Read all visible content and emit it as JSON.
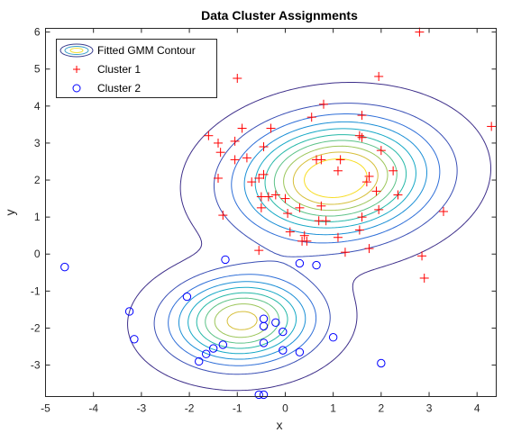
{
  "chart_data": {
    "type": "scatter",
    "title": "Data Cluster Assignments",
    "xlabel": "x",
    "ylabel": "y",
    "xlim": [
      -5,
      4.4
    ],
    "ylim": [
      -3.85,
      6.1
    ],
    "xticks": [
      "-5",
      "-4",
      "-3",
      "-2",
      "-1",
      "0",
      "1",
      "2",
      "3",
      "4"
    ],
    "yticks": [
      "-3",
      "-2",
      "-1",
      "0",
      "1",
      "2",
      "3",
      "4",
      "5",
      "6"
    ],
    "grid": false,
    "legend_position": "top-left",
    "legend": [
      "Fitted GMM Contour",
      "Cluster 1",
      "Cluster 2"
    ],
    "contour": {
      "label": "Fitted GMM Contour",
      "components": [
        {
          "mean": [
            1.05,
            2.05
          ],
          "sx": 1.25,
          "sy": 1.0,
          "rho": 0.1,
          "weight": 0.68
        },
        {
          "mean": [
            -0.9,
            -1.8
          ],
          "sx": 0.95,
          "sy": 0.75,
          "rho": 0.05,
          "weight": 0.32
        }
      ],
      "levels": 10
    },
    "series": [
      {
        "name": "Cluster 1",
        "marker": "plus",
        "color": "#ff0000",
        "points": [
          [
            2.8,
            6.0
          ],
          [
            -1.0,
            4.75
          ],
          [
            1.95,
            4.8
          ],
          [
            0.8,
            4.05
          ],
          [
            0.55,
            3.7
          ],
          [
            1.6,
            3.75
          ],
          [
            4.3,
            3.45
          ],
          [
            -1.6,
            3.2
          ],
          [
            -0.9,
            3.4
          ],
          [
            -0.3,
            3.4
          ],
          [
            1.55,
            3.2
          ],
          [
            1.6,
            3.15
          ],
          [
            -1.4,
            3.0
          ],
          [
            -1.05,
            3.05
          ],
          [
            -0.45,
            2.9
          ],
          [
            -1.35,
            2.75
          ],
          [
            -0.8,
            2.6
          ],
          [
            2.0,
            2.8
          ],
          [
            0.65,
            2.55
          ],
          [
            0.75,
            2.55
          ],
          [
            -1.05,
            2.55
          ],
          [
            1.15,
            2.55
          ],
          [
            1.1,
            2.25
          ],
          [
            2.25,
            2.25
          ],
          [
            -0.55,
            2.05
          ],
          [
            -0.45,
            2.15
          ],
          [
            1.75,
            2.1
          ],
          [
            -1.4,
            2.05
          ],
          [
            1.7,
            1.95
          ],
          [
            -0.7,
            1.95
          ],
          [
            1.9,
            1.7
          ],
          [
            2.35,
            1.6
          ],
          [
            -0.5,
            1.55
          ],
          [
            -0.35,
            1.55
          ],
          [
            -0.2,
            1.6
          ],
          [
            0.0,
            1.5
          ],
          [
            0.3,
            1.25
          ],
          [
            -0.5,
            1.25
          ],
          [
            0.05,
            1.1
          ],
          [
            0.75,
            1.3
          ],
          [
            3.3,
            1.15
          ],
          [
            1.95,
            1.2
          ],
          [
            -1.3,
            1.05
          ],
          [
            1.6,
            1.0
          ],
          [
            0.7,
            0.9
          ],
          [
            0.85,
            0.9
          ],
          [
            1.55,
            0.65
          ],
          [
            0.1,
            0.6
          ],
          [
            0.4,
            0.5
          ],
          [
            1.1,
            0.45
          ],
          [
            0.35,
            0.35
          ],
          [
            0.45,
            0.35
          ],
          [
            1.75,
            0.15
          ],
          [
            -0.55,
            0.1
          ],
          [
            1.25,
            0.05
          ],
          [
            2.85,
            -0.05
          ],
          [
            2.9,
            -0.65
          ]
        ]
      },
      {
        "name": "Cluster 2",
        "marker": "circle",
        "color": "#0000ff",
        "points": [
          [
            -4.6,
            -0.35
          ],
          [
            -1.25,
            -0.15
          ],
          [
            0.3,
            -0.25
          ],
          [
            0.65,
            -0.3
          ],
          [
            -2.05,
            -1.15
          ],
          [
            -3.25,
            -1.55
          ],
          [
            -0.45,
            -1.75
          ],
          [
            -0.2,
            -1.85
          ],
          [
            -0.45,
            -1.95
          ],
          [
            -0.05,
            -2.1
          ],
          [
            -3.15,
            -2.3
          ],
          [
            1.0,
            -2.25
          ],
          [
            -0.45,
            -2.4
          ],
          [
            -1.3,
            -2.45
          ],
          [
            -1.5,
            -2.55
          ],
          [
            -1.65,
            -2.7
          ],
          [
            -0.05,
            -2.6
          ],
          [
            0.3,
            -2.65
          ],
          [
            -1.8,
            -2.9
          ],
          [
            2.0,
            -2.95
          ],
          [
            -0.55,
            -3.8
          ],
          [
            -0.45,
            -3.8
          ]
        ]
      }
    ]
  }
}
